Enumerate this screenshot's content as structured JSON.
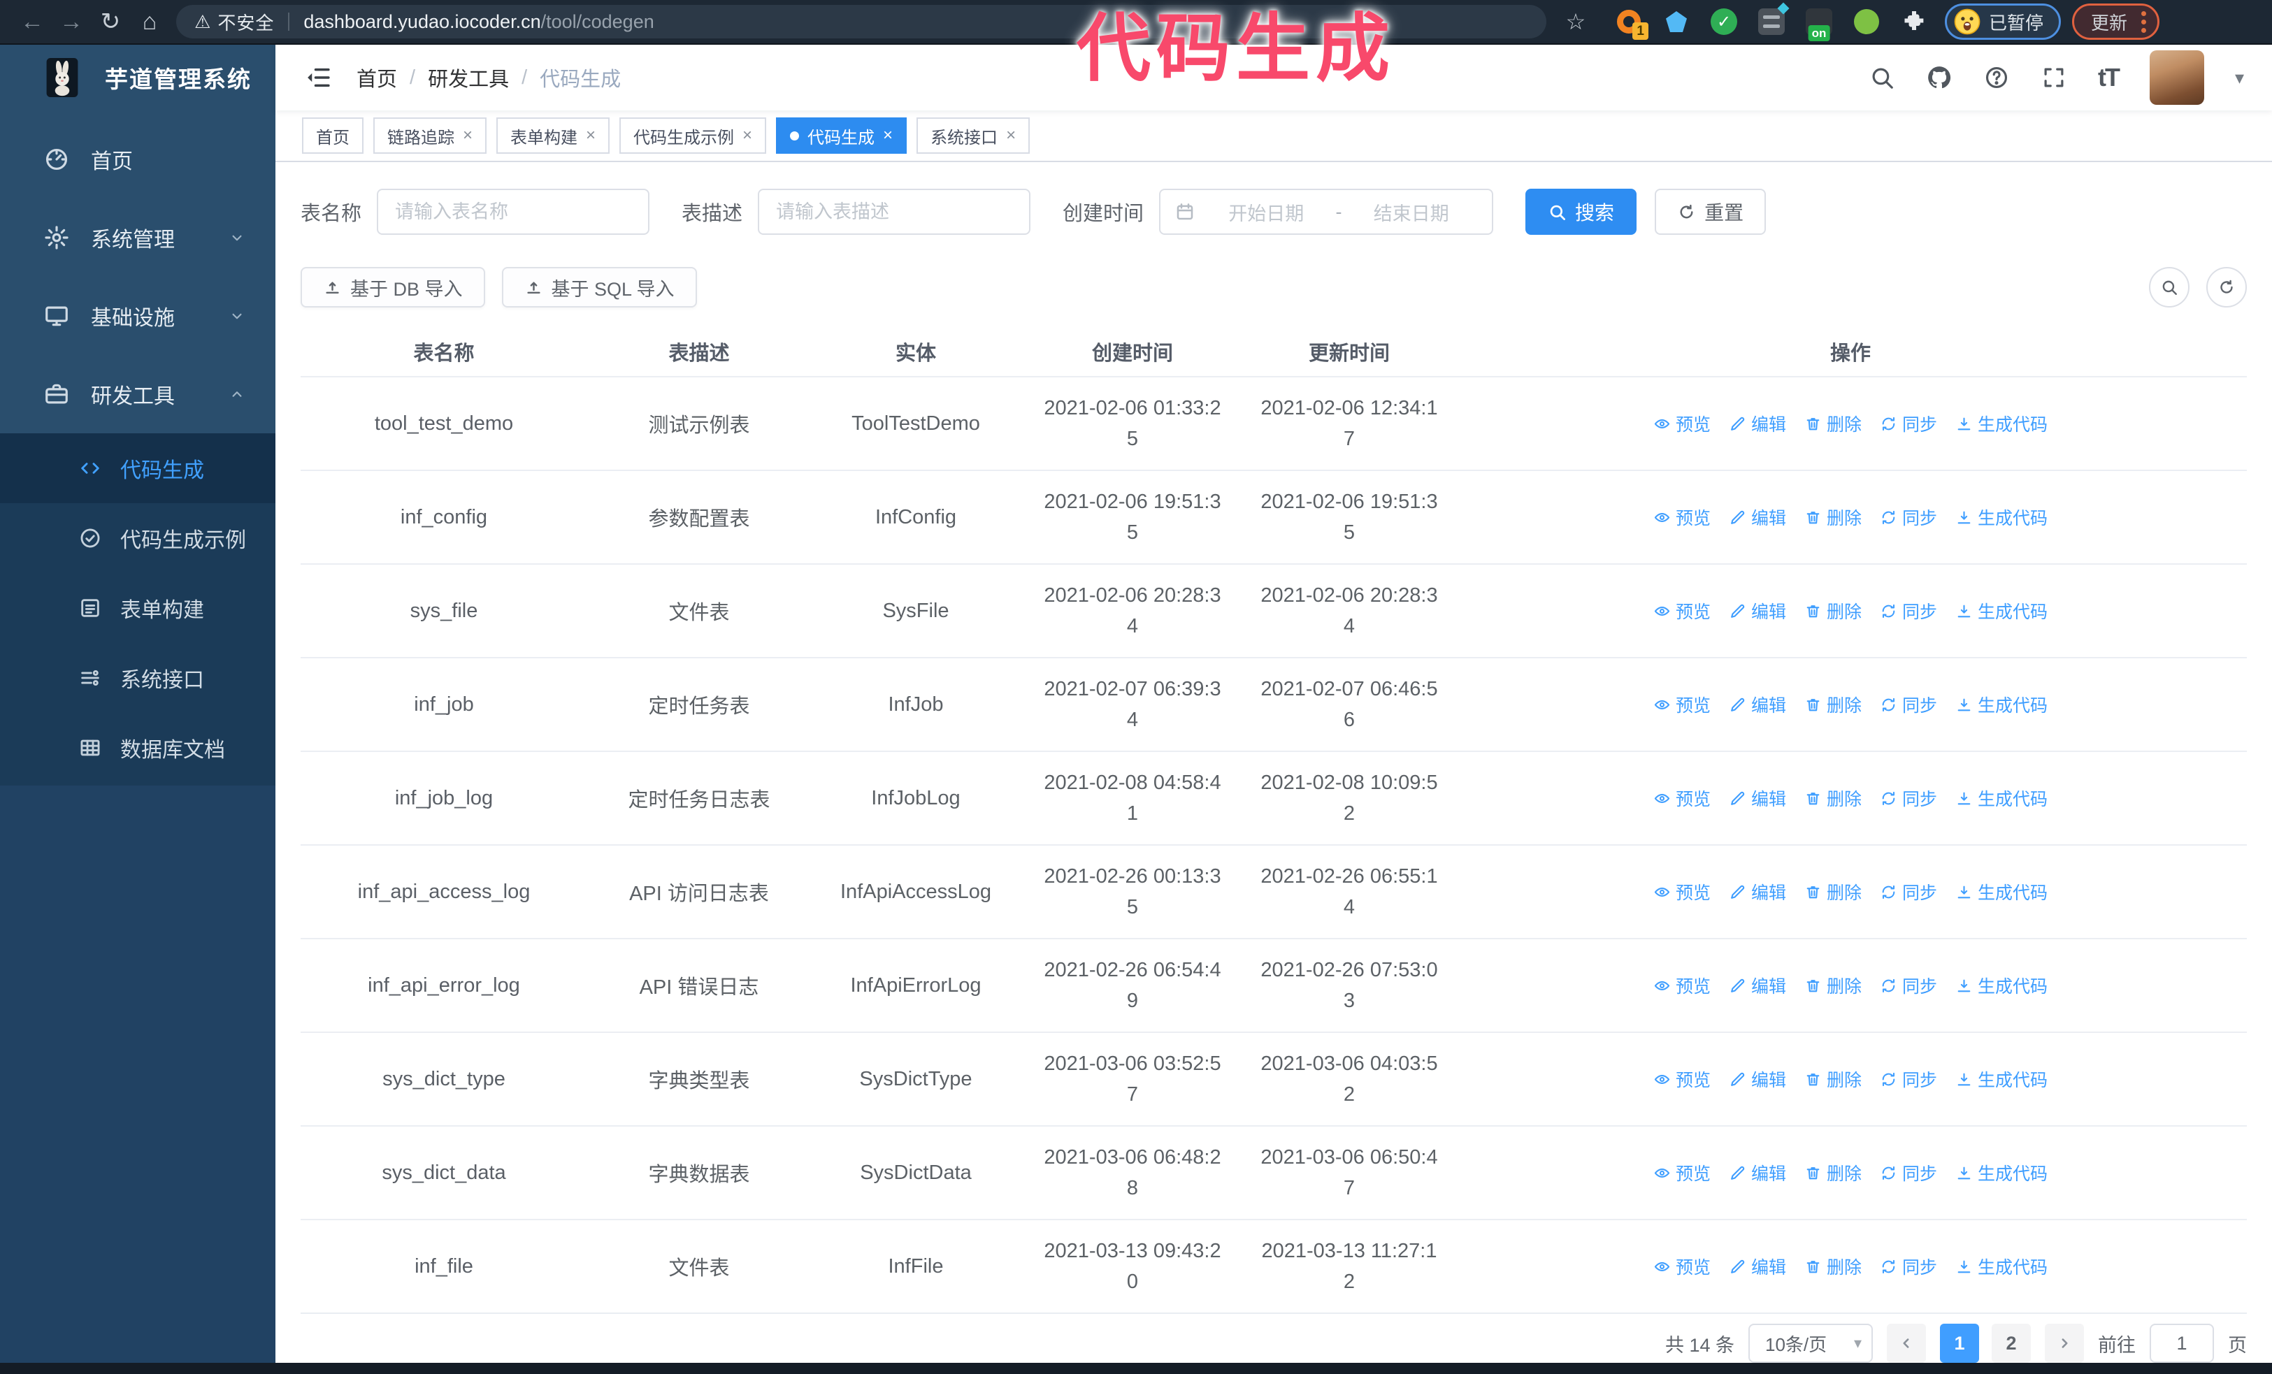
{
  "browser": {
    "security_label": "不安全",
    "url_domain": "dashboard.yudao.iocoder.cn",
    "url_path": "/tool/codegen",
    "extension_badge": "1",
    "extension_on_badge": "on",
    "paused_badge": "已暂停",
    "update_button": "更新"
  },
  "annotation": {
    "text": "代码生成",
    "color": "#f8496b"
  },
  "sidebar": {
    "logo_title": "芋道管理系统",
    "menu": [
      {
        "label": "首页",
        "icon": "dashboard-icon"
      },
      {
        "label": "系统管理",
        "icon": "gear-icon",
        "chevron": "down"
      },
      {
        "label": "基础设施",
        "icon": "monitor-icon",
        "chevron": "down"
      },
      {
        "label": "研发工具",
        "icon": "toolbox-icon",
        "chevron": "up",
        "expanded": true
      }
    ],
    "submenu": [
      {
        "label": "代码生成",
        "icon": "code-icon",
        "active": true
      },
      {
        "label": "代码生成示例",
        "icon": "example-icon"
      },
      {
        "label": "表单构建",
        "icon": "form-icon"
      },
      {
        "label": "系统接口",
        "icon": "api-icon"
      },
      {
        "label": "数据库文档",
        "icon": "database-icon"
      }
    ]
  },
  "header": {
    "breadcrumb": [
      "首页",
      "研发工具",
      "代码生成"
    ]
  },
  "tabs": [
    {
      "label": "首页",
      "closable": false,
      "active": false
    },
    {
      "label": "链路追踪",
      "closable": true,
      "active": false
    },
    {
      "label": "表单构建",
      "closable": true,
      "active": false
    },
    {
      "label": "代码生成示例",
      "closable": true,
      "active": false
    },
    {
      "label": "代码生成",
      "closable": true,
      "active": true
    },
    {
      "label": "系统接口",
      "closable": true,
      "active": false
    }
  ],
  "filters": {
    "table_name_label": "表名称",
    "table_name_placeholder": "请输入表名称",
    "table_desc_label": "表描述",
    "table_desc_placeholder": "请输入表描述",
    "create_time_label": "创建时间",
    "start_date_placeholder": "开始日期",
    "range_separator": "-",
    "end_date_placeholder": "结束日期",
    "search_button": "搜索",
    "reset_button": "重置"
  },
  "toolbar": {
    "import_db_button": "基于 DB 导入",
    "import_sql_button": "基于 SQL 导入"
  },
  "table": {
    "columns": [
      "表名称",
      "表描述",
      "实体",
      "创建时间",
      "更新时间",
      "操作"
    ],
    "actions": [
      "预览",
      "编辑",
      "删除",
      "同步",
      "生成代码"
    ],
    "action_icons": [
      "eye-icon",
      "edit-icon",
      "delete-icon",
      "sync-icon",
      "download-icon"
    ],
    "rows": [
      {
        "name": "tool_test_demo",
        "desc": "测试示例表",
        "entity": "ToolTestDemo",
        "create_time": "2021-02-06 01:33:25",
        "update_time": "2021-02-06 12:34:17"
      },
      {
        "name": "inf_config",
        "desc": "参数配置表",
        "entity": "InfConfig",
        "create_time": "2021-02-06 19:51:35",
        "update_time": "2021-02-06 19:51:35"
      },
      {
        "name": "sys_file",
        "desc": "文件表",
        "entity": "SysFile",
        "create_time": "2021-02-06 20:28:34",
        "update_time": "2021-02-06 20:28:34"
      },
      {
        "name": "inf_job",
        "desc": "定时任务表",
        "entity": "InfJob",
        "create_time": "2021-02-07 06:39:34",
        "update_time": "2021-02-07 06:46:56"
      },
      {
        "name": "inf_job_log",
        "desc": "定时任务日志表",
        "entity": "InfJobLog",
        "create_time": "2021-02-08 04:58:41",
        "update_time": "2021-02-08 10:09:52"
      },
      {
        "name": "inf_api_access_log",
        "desc": "API 访问日志表",
        "entity": "InfApiAccessLog",
        "create_time": "2021-02-26 00:13:35",
        "update_time": "2021-02-26 06:55:14"
      },
      {
        "name": "inf_api_error_log",
        "desc": "API 错误日志",
        "entity": "InfApiErrorLog",
        "create_time": "2021-02-26 06:54:49",
        "update_time": "2021-02-26 07:53:03"
      },
      {
        "name": "sys_dict_type",
        "desc": "字典类型表",
        "entity": "SysDictType",
        "create_time": "2021-03-06 03:52:57",
        "update_time": "2021-03-06 04:03:52"
      },
      {
        "name": "sys_dict_data",
        "desc": "字典数据表",
        "entity": "SysDictData",
        "create_time": "2021-03-06 06:48:28",
        "update_time": "2021-03-06 06:50:47"
      },
      {
        "name": "inf_file",
        "desc": "文件表",
        "entity": "InfFile",
        "create_time": "2021-03-13 09:43:20",
        "update_time": "2021-03-13 11:27:12"
      }
    ]
  },
  "pagination": {
    "total_text": "共 14 条",
    "page_size": "10条/页",
    "pages": [
      "1",
      "2"
    ],
    "active_page": "1",
    "goto_label": "前往",
    "goto_value": "1",
    "goto_suffix": "页"
  },
  "colors": {
    "accent": "#409eff",
    "active_tab": "#2d8cf0",
    "sidebar": "#2a4e6d",
    "sidebar_submenu": "#1b3b58",
    "annotation": "#f8496b"
  }
}
